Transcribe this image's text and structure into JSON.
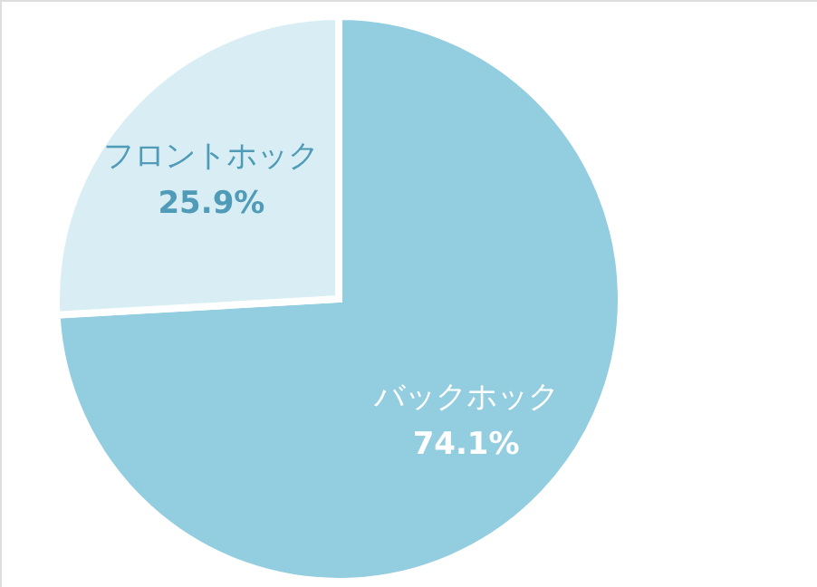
{
  "chart_data": {
    "type": "pie",
    "categories": [
      "バックホック",
      "フロントホック"
    ],
    "values": [
      74.1,
      25.9
    ],
    "colors": [
      "#93cde0",
      "#d8edf4"
    ],
    "value_labels": [
      "74.1%",
      "25.9%"
    ]
  }
}
